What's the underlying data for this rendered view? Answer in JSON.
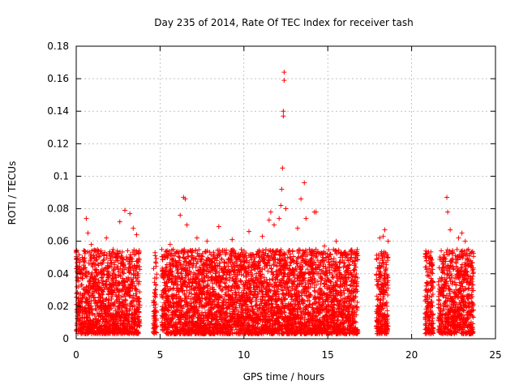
{
  "chart_data": {
    "type": "scatter",
    "title": "Day 235 of 2014, Rate Of TEC Index for receiver tash",
    "xlabel": "GPS time / hours",
    "ylabel": "ROTI / TECUs",
    "xlim": [
      0,
      25
    ],
    "ylim": [
      0,
      0.18
    ],
    "x_ticks": [
      0,
      5,
      10,
      15,
      20,
      25
    ],
    "y_ticks": [
      0,
      0.02,
      0.04,
      0.06,
      0.08,
      0.1,
      0.12,
      0.14,
      0.16,
      0.18
    ],
    "x_tick_labels": [
      "0",
      "5",
      "10",
      "15",
      "20",
      "25"
    ],
    "y_tick_labels": [
      "0",
      "0.02",
      "0.04",
      "0.06",
      "0.08",
      "0.1",
      "0.12",
      "0.14",
      "0.16",
      "0.18"
    ],
    "grid": true,
    "marker": "+",
    "series": [
      {
        "name": "ROTI",
        "color": "#ff0000",
        "coverage_hours": [
          [
            0.0,
            3.8
          ],
          [
            4.6,
            4.8
          ],
          [
            5.1,
            16.8
          ],
          [
            17.9,
            18.6
          ],
          [
            20.8,
            21.3
          ],
          [
            21.6,
            23.7
          ]
        ],
        "points": [
          {
            "x": 0.6,
            "y": 0.074
          },
          {
            "x": 0.7,
            "y": 0.065
          },
          {
            "x": 0.9,
            "y": 0.058
          },
          {
            "x": 1.3,
            "y": 0.046
          },
          {
            "x": 1.8,
            "y": 0.062
          },
          {
            "x": 2.2,
            "y": 0.055
          },
          {
            "x": 2.6,
            "y": 0.072
          },
          {
            "x": 2.9,
            "y": 0.079
          },
          {
            "x": 3.2,
            "y": 0.077
          },
          {
            "x": 3.4,
            "y": 0.068
          },
          {
            "x": 3.6,
            "y": 0.064
          },
          {
            "x": 3.7,
            "y": 0.04
          },
          {
            "x": 4.7,
            "y": 0.053
          },
          {
            "x": 4.7,
            "y": 0.03
          },
          {
            "x": 4.7,
            "y": 0.01
          },
          {
            "x": 5.6,
            "y": 0.058
          },
          {
            "x": 6.2,
            "y": 0.076
          },
          {
            "x": 6.4,
            "y": 0.087
          },
          {
            "x": 6.5,
            "y": 0.086
          },
          {
            "x": 6.6,
            "y": 0.07
          },
          {
            "x": 7.2,
            "y": 0.062
          },
          {
            "x": 7.8,
            "y": 0.06
          },
          {
            "x": 8.5,
            "y": 0.069
          },
          {
            "x": 9.3,
            "y": 0.061
          },
          {
            "x": 10.3,
            "y": 0.066
          },
          {
            "x": 11.1,
            "y": 0.063
          },
          {
            "x": 11.5,
            "y": 0.073
          },
          {
            "x": 11.6,
            "y": 0.078
          },
          {
            "x": 11.8,
            "y": 0.07
          },
          {
            "x": 12.1,
            "y": 0.074
          },
          {
            "x": 12.2,
            "y": 0.082
          },
          {
            "x": 12.25,
            "y": 0.092
          },
          {
            "x": 12.3,
            "y": 0.105
          },
          {
            "x": 12.35,
            "y": 0.137
          },
          {
            "x": 12.35,
            "y": 0.14
          },
          {
            "x": 12.4,
            "y": 0.159
          },
          {
            "x": 12.4,
            "y": 0.164
          },
          {
            "x": 12.5,
            "y": 0.08
          },
          {
            "x": 13.2,
            "y": 0.068
          },
          {
            "x": 13.4,
            "y": 0.086
          },
          {
            "x": 13.6,
            "y": 0.096
          },
          {
            "x": 13.7,
            "y": 0.074
          },
          {
            "x": 14.2,
            "y": 0.078
          },
          {
            "x": 14.3,
            "y": 0.078
          },
          {
            "x": 14.8,
            "y": 0.057
          },
          {
            "x": 15.5,
            "y": 0.06
          },
          {
            "x": 16.1,
            "y": 0.052
          },
          {
            "x": 16.4,
            "y": 0.05
          },
          {
            "x": 18.1,
            "y": 0.062
          },
          {
            "x": 18.3,
            "y": 0.063
          },
          {
            "x": 18.4,
            "y": 0.067
          },
          {
            "x": 18.6,
            "y": 0.06
          },
          {
            "x": 20.9,
            "y": 0.052
          },
          {
            "x": 21.1,
            "y": 0.05
          },
          {
            "x": 22.1,
            "y": 0.087
          },
          {
            "x": 22.15,
            "y": 0.078
          },
          {
            "x": 22.3,
            "y": 0.067
          },
          {
            "x": 22.8,
            "y": 0.062
          },
          {
            "x": 23.0,
            "y": 0.065
          },
          {
            "x": 23.2,
            "y": 0.06
          },
          {
            "x": 23.5,
            "y": 0.045
          }
        ]
      }
    ]
  }
}
